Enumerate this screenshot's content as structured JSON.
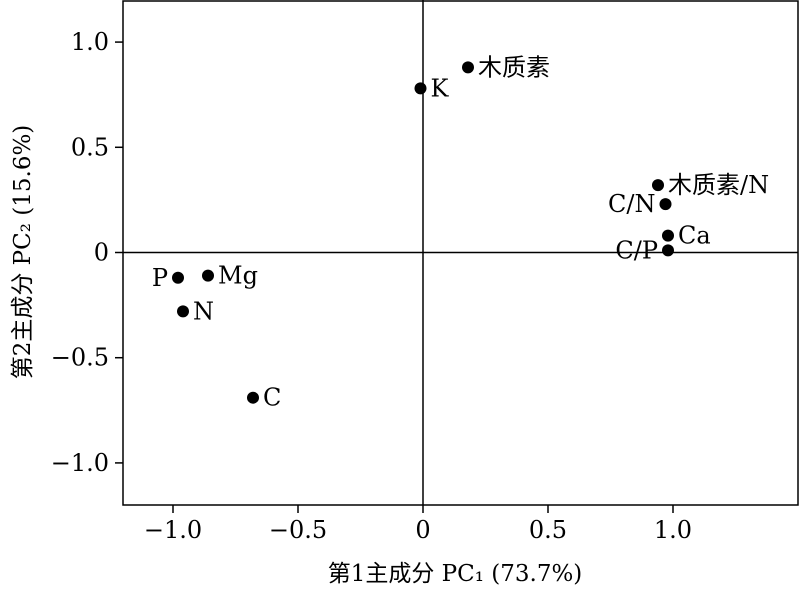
{
  "chart_data": {
    "type": "scatter",
    "title": "",
    "xlabel": "第1主成分 PC₁ (73.7%)",
    "ylabel": "第2主成分 PC₂ (15.6%)",
    "xlim": [
      -1.2,
      1.5
    ],
    "ylim": [
      -1.2,
      1.2
    ],
    "xticks": [
      -1.0,
      -0.5,
      0,
      0.5,
      1.0
    ],
    "xtick_labels": [
      "−1.0",
      "−0.5",
      "0",
      "0.5",
      "1.0"
    ],
    "yticks": [
      -1.0,
      -0.5,
      0,
      0.5,
      1.0
    ],
    "ytick_labels": [
      "−1.0",
      "−0.5",
      "0",
      "0.5",
      "1.0"
    ],
    "grid": false,
    "reference_lines": {
      "x": 0,
      "y": 0
    },
    "points": [
      {
        "label": "K",
        "x": -0.01,
        "y": 0.78,
        "label_side": "right"
      },
      {
        "label": "木质素",
        "x": 0.18,
        "y": 0.88,
        "label_side": "right"
      },
      {
        "label": "木质素/N",
        "x": 0.94,
        "y": 0.32,
        "label_side": "right"
      },
      {
        "label": "C/N",
        "x": 0.97,
        "y": 0.23,
        "label_side": "left"
      },
      {
        "label": "Ca",
        "x": 0.98,
        "y": 0.08,
        "label_side": "right"
      },
      {
        "label": "C/P",
        "x": 0.98,
        "y": 0.01,
        "label_side": "left"
      },
      {
        "label": "P",
        "x": -0.98,
        "y": -0.12,
        "label_side": "left"
      },
      {
        "label": "Mg",
        "x": -0.86,
        "y": -0.11,
        "label_side": "right"
      },
      {
        "label": "N",
        "x": -0.96,
        "y": -0.28,
        "label_side": "right"
      },
      {
        "label": "C",
        "x": -0.68,
        "y": -0.69,
        "label_side": "right"
      }
    ]
  }
}
